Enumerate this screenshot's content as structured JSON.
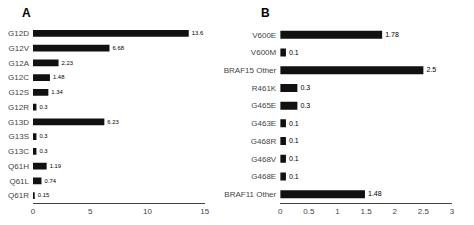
{
  "chart_data": [
    {
      "type": "bar",
      "title": "A",
      "orientation": "horizontal",
      "categories": [
        "G12D",
        "G12V",
        "G12A",
        "G12C",
        "G12S",
        "G12R",
        "G13D",
        "G13S",
        "G13C",
        "Q61H",
        "Q61L",
        "Q61R"
      ],
      "values": [
        13.6,
        6.68,
        2.23,
        1.48,
        1.34,
        0.3,
        6.23,
        0.3,
        0.3,
        1.19,
        0.74,
        0.15
      ],
      "color": "#111111",
      "xlim": [
        0,
        15
      ],
      "xticks": [
        0,
        5,
        10,
        15
      ],
      "grid": false,
      "data_labels": true
    },
    {
      "type": "bar",
      "title": "B",
      "orientation": "horizontal",
      "categories": [
        "V600E",
        "V600M",
        "BRAF15 Other",
        "R461K",
        "G465E",
        "G463E",
        "G468R",
        "G468V",
        "G468E",
        "BRAF11 Other"
      ],
      "values": [
        1.78,
        0.1,
        2.5,
        0.3,
        0.3,
        0.1,
        0.1,
        0.1,
        0.1,
        1.48
      ],
      "color": "#111111",
      "xlim": [
        0,
        3
      ],
      "xticks": [
        0,
        0.5,
        1,
        1.5,
        2,
        2.5,
        3
      ],
      "grid": false,
      "data_labels": true
    }
  ]
}
